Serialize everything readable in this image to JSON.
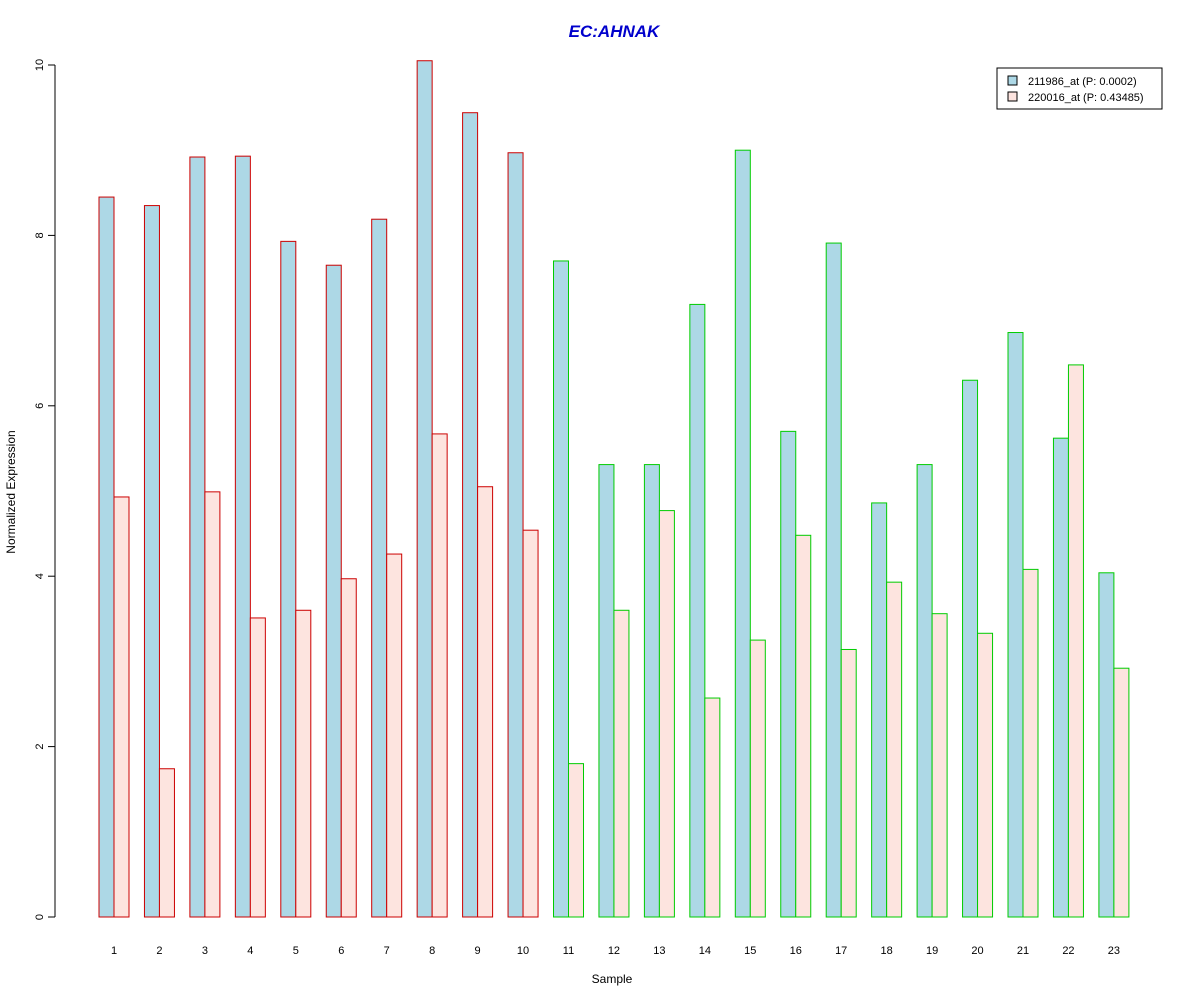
{
  "chart_data": {
    "type": "bar",
    "title": "EC:AHNAK",
    "xlabel": "Sample",
    "ylabel": "Normalized Expression",
    "ylim": [
      0,
      10
    ],
    "yticks": [
      "0",
      "2",
      "4",
      "6",
      "8",
      "10"
    ],
    "categories": [
      "1",
      "2",
      "3",
      "4",
      "5",
      "6",
      "7",
      "8",
      "9",
      "10",
      "11",
      "12",
      "13",
      "14",
      "15",
      "16",
      "17",
      "18",
      "19",
      "20",
      "21",
      "22",
      "23"
    ],
    "series": [
      {
        "name": "211986_at (P: 0.0002)",
        "fill": "#add8e6",
        "values": [
          8.45,
          8.35,
          8.92,
          8.93,
          7.93,
          7.65,
          8.19,
          10.05,
          9.44,
          8.97,
          7.7,
          5.31,
          5.31,
          7.19,
          9.0,
          5.7,
          7.91,
          4.86,
          5.31,
          6.3,
          6.86,
          5.62,
          4.04
        ]
      },
      {
        "name": "220016_at (P: 0.43485)",
        "fill": "#fde4df",
        "values": [
          4.93,
          1.74,
          4.99,
          3.51,
          3.6,
          3.97,
          4.26,
          5.67,
          5.05,
          4.54,
          1.8,
          3.6,
          4.77,
          2.57,
          3.25,
          4.48,
          3.14,
          3.93,
          3.56,
          3.33,
          4.08,
          6.48,
          2.92
        ]
      }
    ],
    "group_border_colors": [
      "#cc0000",
      "#cc0000",
      "#cc0000",
      "#cc0000",
      "#cc0000",
      "#cc0000",
      "#cc0000",
      "#cc0000",
      "#cc0000",
      "#cc0000",
      "#00cc00",
      "#00cc00",
      "#00cc00",
      "#00cc00",
      "#00cc00",
      "#00cc00",
      "#00cc00",
      "#00cc00",
      "#00cc00",
      "#00cc00",
      "#00cc00",
      "#00cc00",
      "#00cc00"
    ],
    "title_color": "#0000cc",
    "legend_position": "top-right",
    "grid": false
  }
}
